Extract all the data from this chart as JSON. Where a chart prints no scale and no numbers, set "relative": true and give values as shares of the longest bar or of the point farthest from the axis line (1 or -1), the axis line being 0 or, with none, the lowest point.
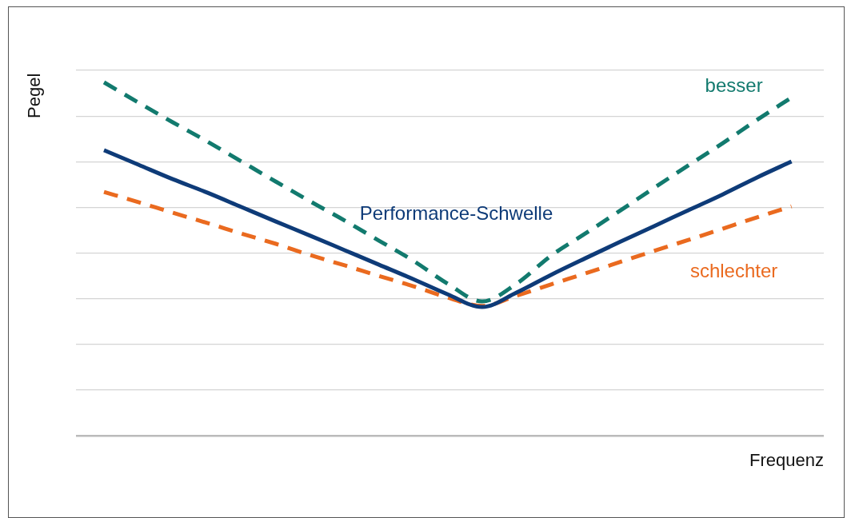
{
  "chart_data": {
    "type": "line",
    "relative": true,
    "xlabel": "Frequenz",
    "ylabel": "Pegel",
    "grid": "y",
    "legend": false,
    "marker": "none",
    "categories": [
      null,
      null,
      null,
      null,
      null,
      null,
      null,
      null,
      null,
      null,
      null,
      null,
      null,
      null,
      null,
      null,
      null,
      null,
      null,
      null,
      null
    ],
    "series": [
      {
        "name": "besser",
        "color": "#127a6e",
        "line_style": "dashed",
        "values": [
          1.0,
          0.943,
          0.887,
          0.833,
          0.776,
          0.719,
          0.663,
          0.609,
          0.552,
          0.495,
          0.43,
          0.38,
          0.43,
          0.509,
          0.572,
          0.636,
          0.701,
          0.765,
          0.828,
          0.894,
          0.957
        ]
      },
      {
        "name": "Performance-Schwelle",
        "color": "#0e3b78",
        "line_style": "solid",
        "values": [
          0.808,
          0.767,
          0.726,
          0.688,
          0.647,
          0.606,
          0.566,
          0.525,
          0.484,
          0.443,
          0.4,
          0.364,
          0.405,
          0.455,
          0.502,
          0.548,
          0.593,
          0.638,
          0.683,
          0.731,
          0.776
        ]
      },
      {
        "name": "schlechter",
        "color": "#ea6a1f",
        "line_style": "dashed",
        "values": [
          0.69,
          0.661,
          0.631,
          0.602,
          0.572,
          0.543,
          0.511,
          0.482,
          0.452,
          0.423,
          0.391,
          0.367,
          0.396,
          0.428,
          0.459,
          0.491,
          0.523,
          0.554,
          0.586,
          0.618,
          0.649
        ]
      }
    ]
  }
}
